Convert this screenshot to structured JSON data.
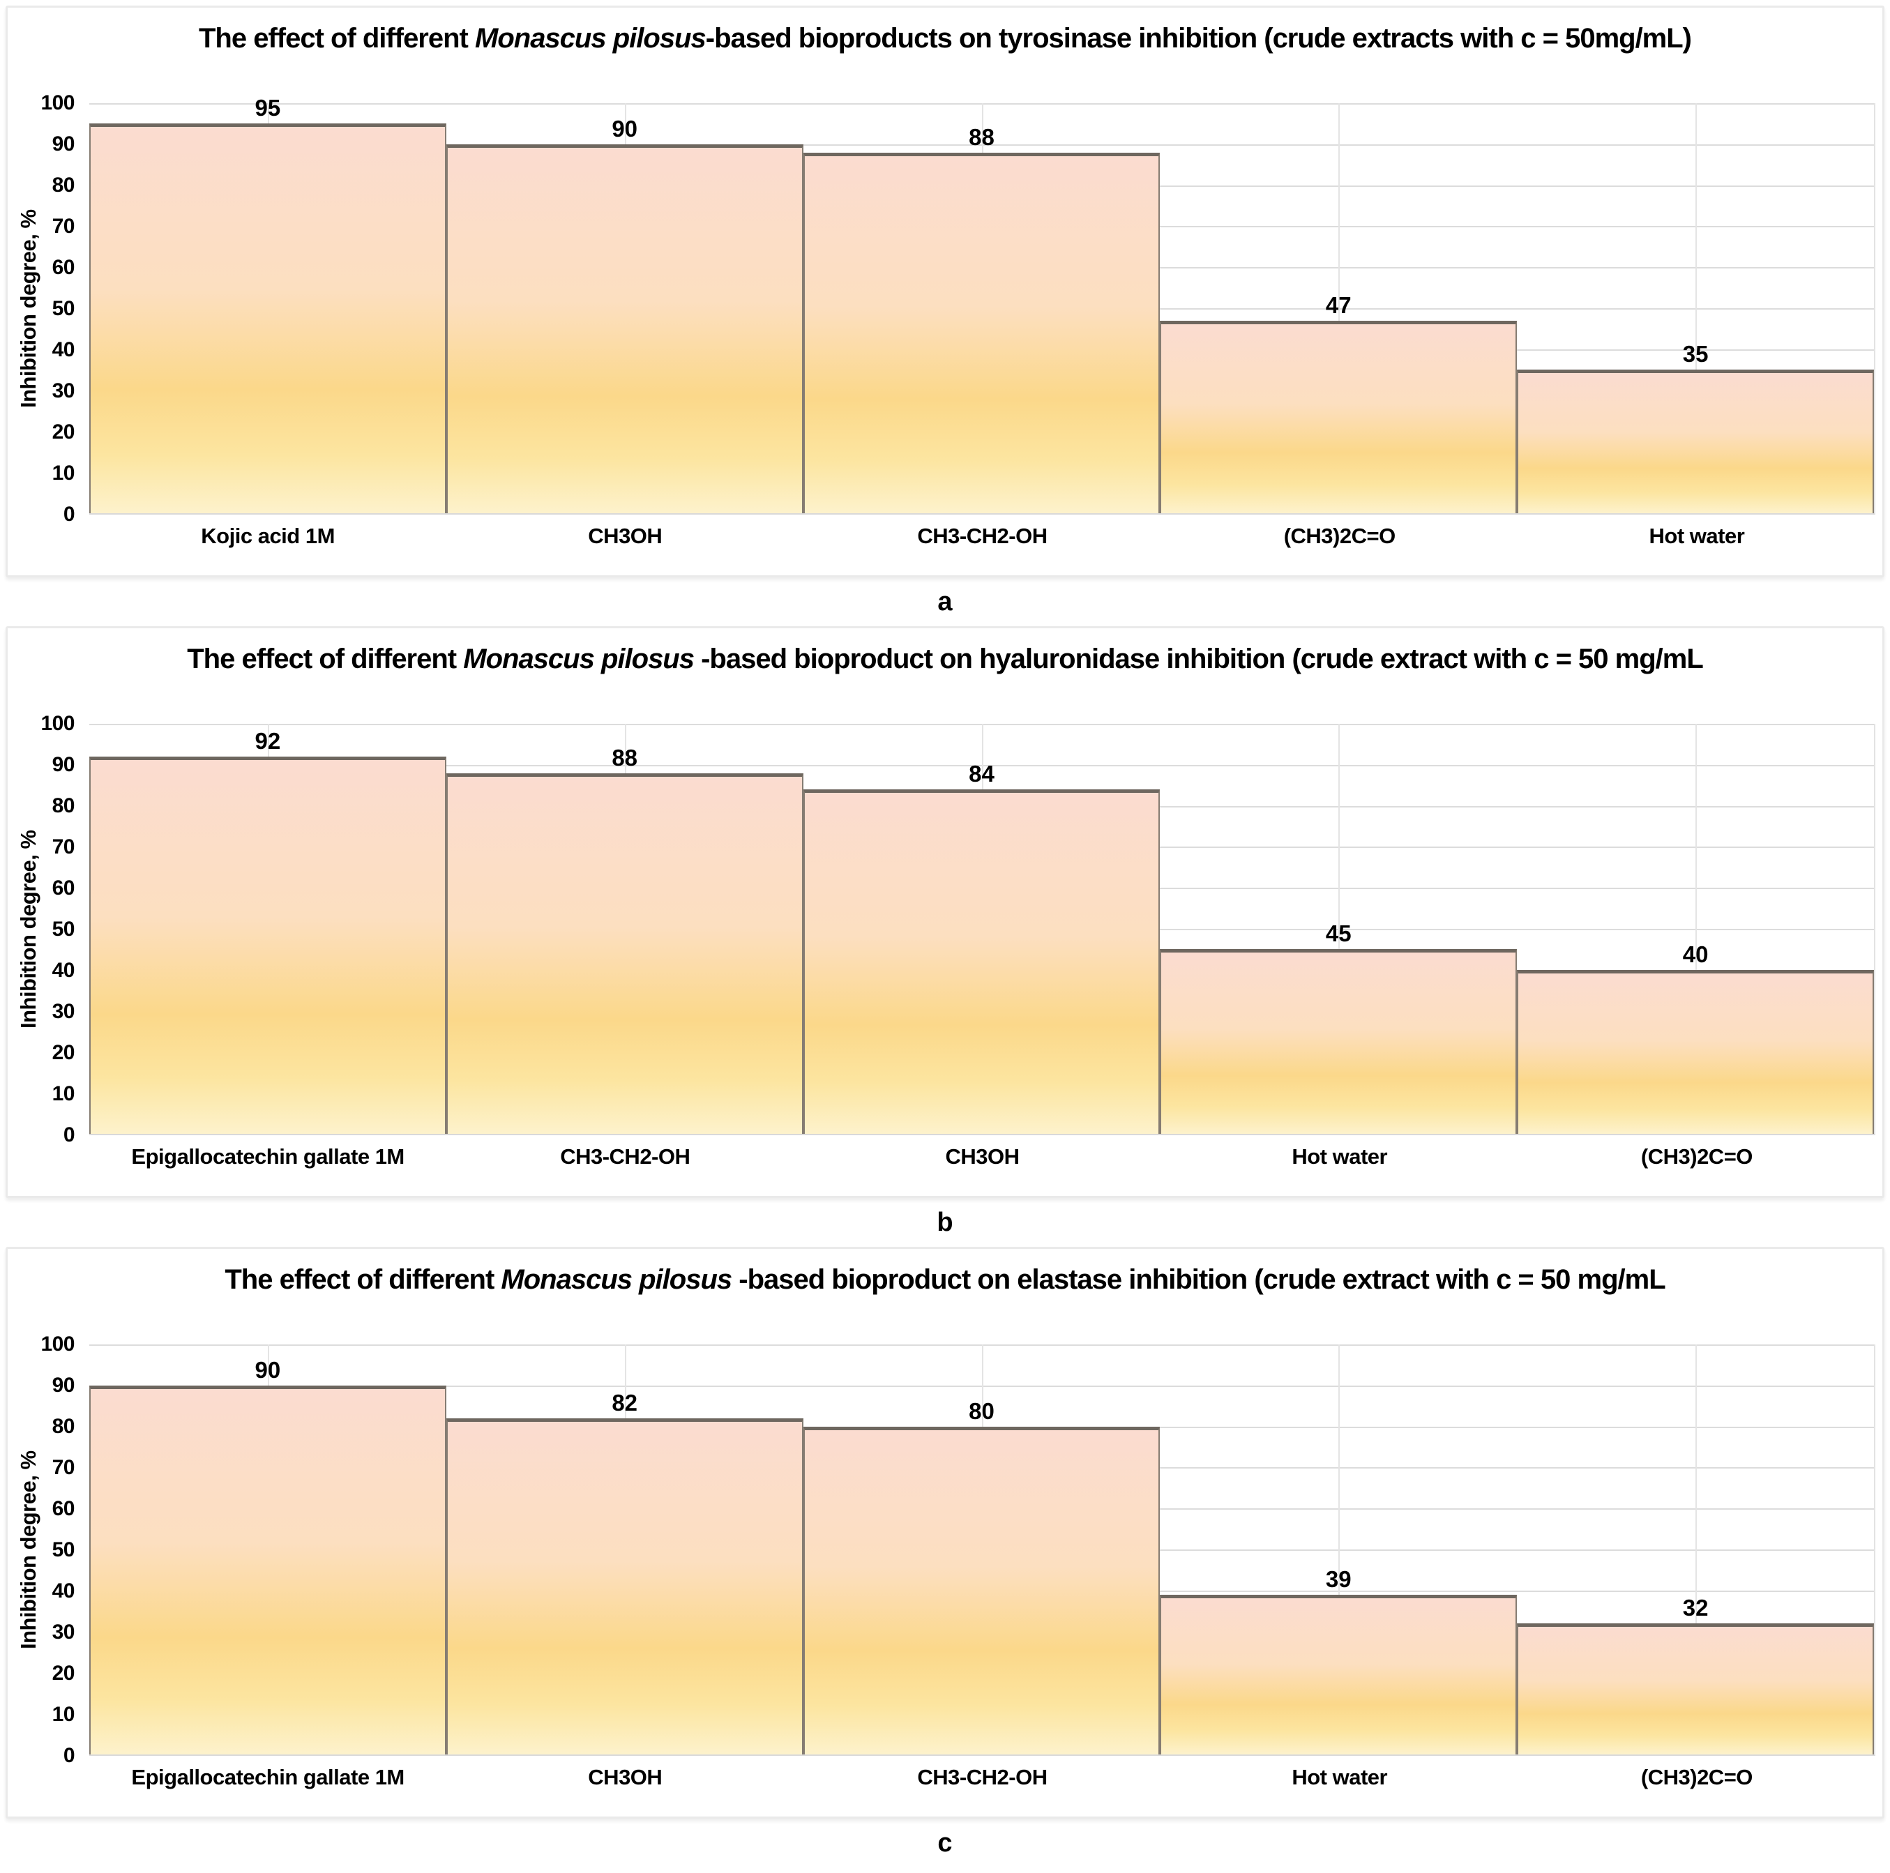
{
  "figure": {
    "background": "#ffffff",
    "panel_border_color": "#eaeaea",
    "grid_color": "#dcdcdc",
    "bar_border_color": "#857c72",
    "bar_border_top_color": "#6e675f",
    "bar_gradient": [
      "#fbdcd0",
      "#fcdfc0",
      "#fbd88a",
      "#fce5a0",
      "#fdf2cc"
    ]
  },
  "chart_data": [
    {
      "type": "bar",
      "panel_label": "a",
      "title_prefix": "The effect of different ",
      "title_italic": "Monascus pilosus",
      "title_suffix": "-based bioproducts on tyrosinase inhibition (crude extracts with c = 50mg/mL)",
      "ylabel": "Inhibition degree, %",
      "ylim": [
        0,
        100
      ],
      "ytick_step": 10,
      "grid": true,
      "legend": "none",
      "categories": [
        "Kojic acid 1M",
        "CH3OH",
        "CH3-CH2-OH",
        "(CH3)2C=O",
        "Hot water"
      ],
      "values": [
        95,
        90,
        88,
        47,
        35
      ]
    },
    {
      "type": "bar",
      "panel_label": "b",
      "title_prefix": "The effect of different ",
      "title_italic": "Monascus pilosus",
      "title_suffix": " -based bioproduct on hyaluronidase inhibition (crude extract with c = 50 mg/mL",
      "ylabel": "Inhibition degree, %",
      "ylim": [
        0,
        100
      ],
      "ytick_step": 10,
      "grid": true,
      "legend": "none",
      "categories": [
        "Epigallocatechin gallate 1M",
        "CH3-CH2-OH",
        "CH3OH",
        "Hot water",
        "(CH3)2C=O"
      ],
      "values": [
        92,
        88,
        84,
        45,
        40
      ]
    },
    {
      "type": "bar",
      "panel_label": "c",
      "title_prefix": "The effect of different ",
      "title_italic": "Monascus pilosus",
      "title_suffix": " -based bioproduct on elastase inhibition (crude extract with c = 50 mg/mL",
      "ylabel": "Inhibition degree, %",
      "ylim": [
        0,
        100
      ],
      "ytick_step": 10,
      "grid": true,
      "legend": "none",
      "categories": [
        "Epigallocatechin gallate 1M",
        "CH3OH",
        "CH3-CH2-OH",
        "Hot water",
        "(CH3)2C=O"
      ],
      "values": [
        90,
        82,
        80,
        39,
        32
      ]
    }
  ]
}
